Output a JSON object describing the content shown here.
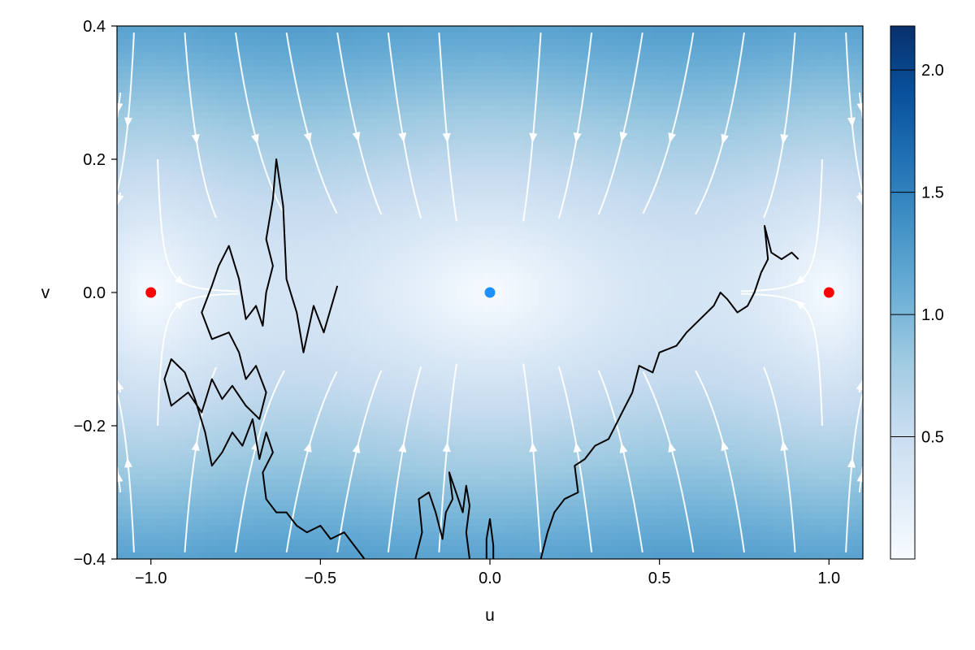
{
  "chart_data": {
    "type": "heatmap",
    "title": "",
    "xlabel": "u",
    "ylabel": "v",
    "xlim": [
      -1.1,
      1.1
    ],
    "ylim": [
      -0.4,
      0.4
    ],
    "x_ticks": [
      -1.0,
      -0.5,
      0.0,
      0.5,
      1.0
    ],
    "x_tick_labels": [
      "−1.0",
      "−0.5",
      "0.0",
      "0.5",
      "1.0"
    ],
    "y_ticks": [
      -0.4,
      -0.2,
      0.0,
      0.2,
      0.4
    ],
    "y_tick_labels": [
      "−0.4",
      "−0.2",
      "0.0",
      "0.2",
      "0.4"
    ],
    "grid": false,
    "colormap": "Blues",
    "colorbar": {
      "range": [
        0.0,
        2.18
      ],
      "ticks": [
        0.5,
        1.0,
        1.5,
        2.0
      ],
      "tick_labels": [
        "0.5",
        "1.0",
        "1.5",
        "2.0"
      ]
    },
    "background_field": "magnitude of the vector field (u^3 - u, -3v)",
    "streamlines": {
      "vector_field": [
        "u^3 - u",
        "-3v"
      ],
      "color": "#ffffff"
    },
    "fixed_points": [
      {
        "u": -1.0,
        "v": 0.0,
        "color": "#ff0000"
      },
      {
        "u": 0.0,
        "v": 0.0,
        "color": "#1e90ff"
      },
      {
        "u": 1.0,
        "v": 0.0,
        "color": "#ff0000"
      }
    ],
    "trajectories": [
      {
        "color": "#000000",
        "points": [
          [
            -0.45,
            0.01
          ],
          [
            -0.49,
            -0.06
          ],
          [
            -0.52,
            -0.02
          ],
          [
            -0.55,
            -0.09
          ],
          [
            -0.57,
            -0.03
          ],
          [
            -0.6,
            0.02
          ],
          [
            -0.61,
            0.13
          ],
          [
            -0.63,
            0.2
          ],
          [
            -0.64,
            0.14
          ],
          [
            -0.66,
            0.08
          ],
          [
            -0.64,
            0.04
          ],
          [
            -0.66,
            0.0
          ],
          [
            -0.67,
            -0.05
          ],
          [
            -0.69,
            -0.02
          ],
          [
            -0.72,
            -0.04
          ],
          [
            -0.74,
            0.02
          ],
          [
            -0.77,
            0.07
          ],
          [
            -0.8,
            0.04
          ],
          [
            -0.82,
            0.01
          ],
          [
            -0.85,
            -0.03
          ],
          [
            -0.82,
            -0.07
          ],
          [
            -0.77,
            -0.06
          ],
          [
            -0.74,
            -0.09
          ],
          [
            -0.72,
            -0.13
          ],
          [
            -0.69,
            -0.11
          ],
          [
            -0.66,
            -0.15
          ],
          [
            -0.68,
            -0.19
          ],
          [
            -0.72,
            -0.17
          ],
          [
            -0.76,
            -0.14
          ],
          [
            -0.79,
            -0.16
          ],
          [
            -0.82,
            -0.13
          ],
          [
            -0.85,
            -0.18
          ],
          [
            -0.89,
            -0.15
          ],
          [
            -0.94,
            -0.17
          ],
          [
            -0.96,
            -0.13
          ],
          [
            -0.94,
            -0.1
          ],
          [
            -0.9,
            -0.12
          ],
          [
            -0.87,
            -0.16
          ],
          [
            -0.84,
            -0.21
          ],
          [
            -0.82,
            -0.26
          ],
          [
            -0.79,
            -0.24
          ],
          [
            -0.76,
            -0.21
          ],
          [
            -0.73,
            -0.23
          ],
          [
            -0.7,
            -0.19
          ],
          [
            -0.68,
            -0.25
          ],
          [
            -0.66,
            -0.21
          ],
          [
            -0.64,
            -0.24
          ],
          [
            -0.67,
            -0.27
          ],
          [
            -0.66,
            -0.31
          ],
          [
            -0.63,
            -0.33
          ],
          [
            -0.6,
            -0.33
          ],
          [
            -0.57,
            -0.35
          ],
          [
            -0.54,
            -0.36
          ],
          [
            -0.5,
            -0.35
          ],
          [
            -0.47,
            -0.37
          ],
          [
            -0.43,
            -0.36
          ],
          [
            -0.4,
            -0.38
          ],
          [
            -0.37,
            -0.4
          ]
        ]
      },
      {
        "color": "#000000",
        "points": [
          [
            -0.22,
            -0.4
          ],
          [
            -0.2,
            -0.36
          ],
          [
            -0.21,
            -0.31
          ],
          [
            -0.18,
            -0.3
          ],
          [
            -0.16,
            -0.33
          ],
          [
            -0.14,
            -0.37
          ],
          [
            -0.13,
            -0.33
          ],
          [
            -0.11,
            -0.31
          ],
          [
            -0.12,
            -0.27
          ],
          [
            -0.1,
            -0.3
          ],
          [
            -0.08,
            -0.33
          ],
          [
            -0.07,
            -0.29
          ],
          [
            -0.06,
            -0.32
          ],
          [
            -0.07,
            -0.36
          ],
          [
            -0.06,
            -0.4
          ]
        ]
      },
      {
        "color": "#000000",
        "points": [
          [
            -0.01,
            -0.4
          ],
          [
            -0.01,
            -0.37
          ],
          [
            0.0,
            -0.34
          ],
          [
            0.01,
            -0.38
          ],
          [
            0.01,
            -0.4
          ]
        ]
      },
      {
        "color": "#000000",
        "points": [
          [
            0.15,
            -0.4
          ],
          [
            0.17,
            -0.36
          ],
          [
            0.19,
            -0.33
          ],
          [
            0.22,
            -0.31
          ],
          [
            0.26,
            -0.3
          ],
          [
            0.25,
            -0.26
          ],
          [
            0.28,
            -0.25
          ],
          [
            0.31,
            -0.23
          ],
          [
            0.35,
            -0.22
          ],
          [
            0.39,
            -0.18
          ],
          [
            0.42,
            -0.15
          ],
          [
            0.44,
            -0.11
          ],
          [
            0.48,
            -0.12
          ],
          [
            0.5,
            -0.09
          ],
          [
            0.55,
            -0.08
          ],
          [
            0.58,
            -0.06
          ],
          [
            0.62,
            -0.04
          ],
          [
            0.66,
            -0.02
          ],
          [
            0.68,
            0.0
          ],
          [
            0.7,
            -0.01
          ],
          [
            0.73,
            -0.03
          ],
          [
            0.76,
            -0.02
          ],
          [
            0.78,
            0.0
          ],
          [
            0.8,
            0.03
          ],
          [
            0.82,
            0.05
          ],
          [
            0.81,
            0.1
          ],
          [
            0.83,
            0.06
          ],
          [
            0.86,
            0.05
          ],
          [
            0.89,
            0.06
          ],
          [
            0.91,
            0.05
          ]
        ]
      }
    ]
  }
}
